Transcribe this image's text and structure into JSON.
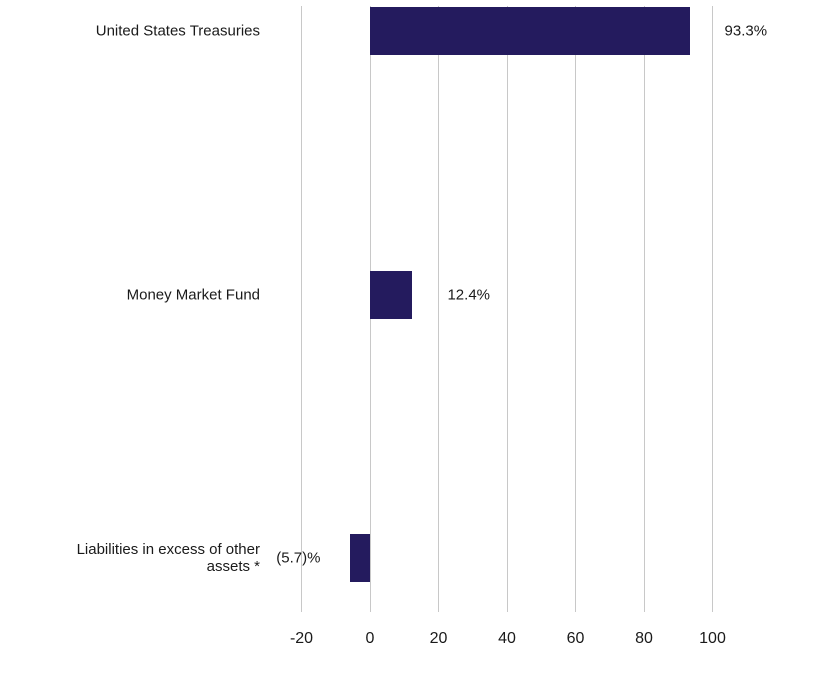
{
  "chart_data": {
    "type": "bar",
    "orientation": "horizontal",
    "title": "",
    "categories": [
      "United States Treasuries",
      "Money Market Fund",
      "Liabilities in excess of other assets *"
    ],
    "values": [
      93.3,
      12.4,
      -5.7
    ],
    "value_labels": [
      "93.3%",
      "12.4%",
      "(5.7)%"
    ],
    "x_ticks": [
      "-20",
      "0",
      "20",
      "40",
      "60",
      "80",
      "100"
    ],
    "x_tick_values": [
      -20,
      0,
      20,
      40,
      60,
      80,
      100
    ],
    "xlim": [
      -20,
      100
    ],
    "grid": true,
    "legend_position": "none",
    "bar_color": "#241b5e",
    "gridline_color": "#c8c8c8",
    "text_color": "#1a1a1a",
    "background": "#ffffff"
  }
}
